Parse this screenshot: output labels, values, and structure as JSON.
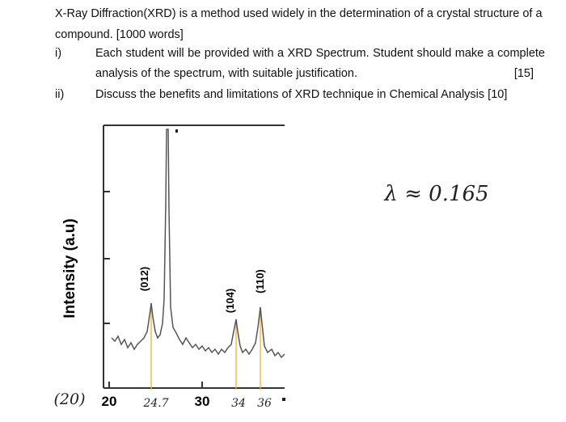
{
  "question": {
    "intro": "X-Ray Diffraction(XRD) is a method used widely in the determination of a crystal structure of a compound. [1000 words]",
    "items": [
      {
        "number": "i)",
        "text": "Each student will be provided with a XRD Spectrum. Student should make a complete analysis of the spectrum, with suitable justification.",
        "marks": "[15]"
      },
      {
        "number": "ii)",
        "text": "Discuss the benefits and limitations of XRD technique in Chemical Analysis [10]"
      }
    ]
  },
  "figure": {
    "y_label": "Intensity (a.u)",
    "peak_labels": [
      "(012)",
      "(104)",
      "(110)"
    ],
    "x_tick_labels": [
      "20",
      "30"
    ]
  },
  "annotations": {
    "start": "(20)",
    "peaks": [
      "24.7",
      "34",
      "36"
    ],
    "wavelength": "λ ≈ 0.165"
  }
}
